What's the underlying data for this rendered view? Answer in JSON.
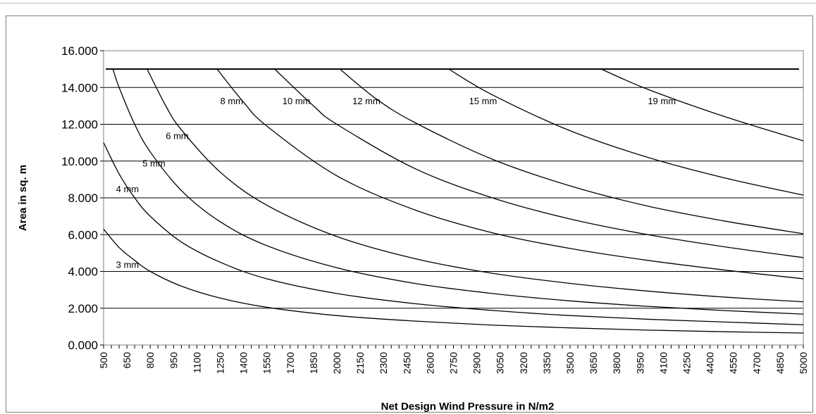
{
  "chart_data": {
    "type": "line",
    "xlabel": "Net Design Wind Pressure in N/m2",
    "ylabel": "Area in sq. m",
    "xlim": [
      500,
      5000
    ],
    "ylim": [
      0,
      16
    ],
    "yticks": [
      "0.000",
      "2.000",
      "4.000",
      "6.000",
      "8.000",
      "10.000",
      "12.000",
      "14.000",
      "16.000"
    ],
    "xticks": [
      "500",
      "650",
      "800",
      "950",
      "1100",
      "1250",
      "1400",
      "1550",
      "1700",
      "1850",
      "2000",
      "2150",
      "2300",
      "2450",
      "2600",
      "2750",
      "2900",
      "3050",
      "3200",
      "3350",
      "3500",
      "3650",
      "3800",
      "3950",
      "4100",
      "4250",
      "4400",
      "4550",
      "4700",
      "4850",
      "5000"
    ],
    "max_area": 15,
    "grid": "horizontal",
    "legend": "none",
    "line_color": "#000000",
    "series": [
      {
        "label": "3 mm",
        "points": [
          [
            500,
            6.3
          ],
          [
            600,
            5.3
          ],
          [
            700,
            4.6
          ],
          [
            800,
            4.0
          ],
          [
            1000,
            3.2
          ],
          [
            1250,
            2.55
          ],
          [
            1550,
            2.05
          ],
          [
            2000,
            1.6
          ],
          [
            2500,
            1.3
          ],
          [
            3000,
            1.08
          ],
          [
            3500,
            0.93
          ],
          [
            4000,
            0.81
          ],
          [
            4500,
            0.72
          ],
          [
            5000,
            0.65
          ]
        ]
      },
      {
        "label": "4 mm",
        "points": [
          [
            500,
            11.0
          ],
          [
            600,
            9.3
          ],
          [
            700,
            8.0
          ],
          [
            800,
            7.0
          ],
          [
            1000,
            5.6
          ],
          [
            1250,
            4.5
          ],
          [
            1550,
            3.6
          ],
          [
            2000,
            2.8
          ],
          [
            2500,
            2.25
          ],
          [
            3000,
            1.88
          ],
          [
            3500,
            1.6
          ],
          [
            4000,
            1.4
          ],
          [
            4500,
            1.25
          ],
          [
            5000,
            1.1
          ]
        ]
      },
      {
        "label": "5 mm",
        "points": [
          [
            560,
            15.0
          ],
          [
            600,
            14.0
          ],
          [
            700,
            12.0
          ],
          [
            800,
            10.5
          ],
          [
            1000,
            8.4
          ],
          [
            1250,
            6.7
          ],
          [
            1550,
            5.4
          ],
          [
            2000,
            4.2
          ],
          [
            2500,
            3.35
          ],
          [
            3000,
            2.8
          ],
          [
            3500,
            2.4
          ],
          [
            4000,
            2.1
          ],
          [
            4500,
            1.87
          ],
          [
            5000,
            1.68
          ]
        ]
      },
      {
        "label": "6 mm",
        "points": [
          [
            780,
            15.0
          ],
          [
            900,
            13.0
          ],
          [
            1000,
            11.7
          ],
          [
            1250,
            9.4
          ],
          [
            1550,
            7.6
          ],
          [
            2000,
            5.9
          ],
          [
            2500,
            4.7
          ],
          [
            3000,
            3.9
          ],
          [
            3500,
            3.35
          ],
          [
            4000,
            2.93
          ],
          [
            4500,
            2.6
          ],
          [
            5000,
            2.35
          ]
        ]
      },
      {
        "label": "8 mm",
        "points": [
          [
            1230,
            15.0
          ],
          [
            1400,
            13.2
          ],
          [
            1550,
            11.9
          ],
          [
            2000,
            9.2
          ],
          [
            2500,
            7.35
          ],
          [
            3000,
            6.1
          ],
          [
            3500,
            5.25
          ],
          [
            4000,
            4.6
          ],
          [
            4500,
            4.07
          ],
          [
            5000,
            3.6
          ]
        ]
      },
      {
        "label": "10 mm",
        "points": [
          [
            1600,
            15.0
          ],
          [
            1850,
            13.0
          ],
          [
            2000,
            12.0
          ],
          [
            2500,
            9.6
          ],
          [
            3000,
            8.0
          ],
          [
            3500,
            6.85
          ],
          [
            4000,
            6.0
          ],
          [
            4500,
            5.33
          ],
          [
            5000,
            4.75
          ]
        ]
      },
      {
        "label": "12 mm",
        "points": [
          [
            2020,
            15.0
          ],
          [
            2250,
            13.4
          ],
          [
            2500,
            12.1
          ],
          [
            3000,
            10.1
          ],
          [
            3500,
            8.65
          ],
          [
            4000,
            7.55
          ],
          [
            4500,
            6.73
          ],
          [
            5000,
            6.05
          ]
        ]
      },
      {
        "label": "15 mm",
        "points": [
          [
            2720,
            15.0
          ],
          [
            3000,
            13.6
          ],
          [
            3500,
            11.65
          ],
          [
            4000,
            10.2
          ],
          [
            4500,
            9.07
          ],
          [
            5000,
            8.15
          ]
        ]
      },
      {
        "label": "19 mm",
        "points": [
          [
            3700,
            15.0
          ],
          [
            4000,
            13.9
          ],
          [
            4500,
            12.4
          ],
          [
            5000,
            11.1
          ]
        ]
      }
    ],
    "label_positions": [
      {
        "text": "3 mm",
        "x": 580,
        "y": 4.2
      },
      {
        "text": "4 mm",
        "x": 580,
        "y": 8.3
      },
      {
        "text": "5 mm",
        "x": 750,
        "y": 9.7
      },
      {
        "text": "6 mm",
        "x": 900,
        "y": 11.2
      },
      {
        "text": "8 mm",
        "x": 1250,
        "y": 13.1
      },
      {
        "text": "10 mm",
        "x": 1650,
        "y": 13.1
      },
      {
        "text": "12 mm",
        "x": 2100,
        "y": 13.1
      },
      {
        "text": "15 mm",
        "x": 2850,
        "y": 13.1
      },
      {
        "text": "19 mm",
        "x": 4000,
        "y": 13.1
      }
    ]
  }
}
